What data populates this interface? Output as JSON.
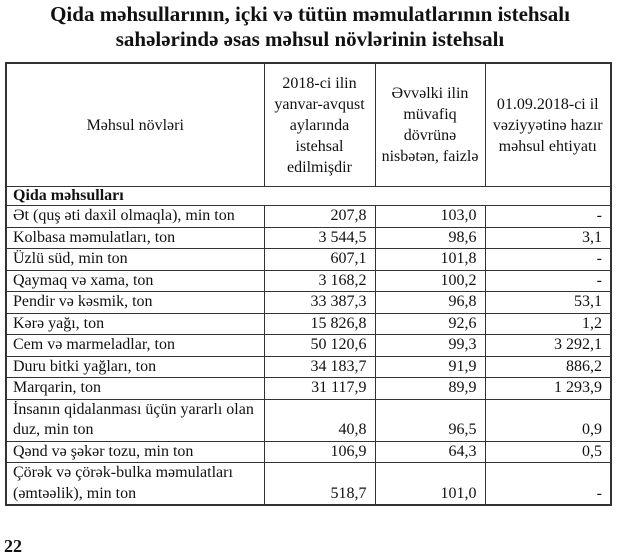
{
  "title": {
    "line1": "Qida məhsullarının, içki və tütün məmulatlarının istehsalı",
    "line2": "sahələrində əsas məhsul növlərinin istehsalı"
  },
  "table": {
    "headers": [
      "Məhsul növləri",
      "2018-ci ilin yanvar-avqust aylarında istehsal edilmişdir",
      "Əvvəlki ilin müvafiq dövrünə nisbətən, faizlə",
      "01.09.2018-ci il vəziyyətinə hazır məhsul ehtiyatı"
    ],
    "section": "Qida məhsulları",
    "rows": [
      {
        "name": "Ət (quş əti daxil olmaqla), min ton",
        "produced": "207,8",
        "percent": "103,0",
        "stock": "-"
      },
      {
        "name": "Kolbasa məmulatları, ton",
        "produced": "3 544,5",
        "percent": "98,6",
        "stock": "3,1"
      },
      {
        "name": "Üzlü süd, min ton",
        "produced": "607,1",
        "percent": "101,8",
        "stock": "-"
      },
      {
        "name": "Qaymaq və xama, ton",
        "produced": "3 168,2",
        "percent": "100,2",
        "stock": "-"
      },
      {
        "name": "Pendir və kəsmik, ton",
        "produced": "33 387,3",
        "percent": "96,8",
        "stock": "53,1"
      },
      {
        "name": "Kərə yağı, ton",
        "produced": "15 826,8",
        "percent": "92,6",
        "stock": "1,2"
      },
      {
        "name": "Cem və marmeladlar, ton",
        "produced": "50 120,6",
        "percent": "99,3",
        "stock": "3 292,1"
      },
      {
        "name": "Duru bitki yağları, ton",
        "produced": "34 183,7",
        "percent": "91,9",
        "stock": "886,2"
      },
      {
        "name": "Marqarin, ton",
        "produced": "31 117,9",
        "percent": "89,9",
        "stock": "1 293,9"
      },
      {
        "name": "İnsanın qidalanması üçün yararlı olan duz, min ton",
        "produced": "40,8",
        "percent": "96,5",
        "stock": "0,9"
      },
      {
        "name": "Qənd və şəkər tozu, min ton",
        "produced": "106,9",
        "percent": "64,3",
        "stock": "0,5"
      },
      {
        "name": "Çörək və çörək-bulka məmulatları (əmtəəlik), min ton",
        "produced": "518,7",
        "percent": "101,0",
        "stock": "-"
      }
    ]
  },
  "page_number": "22"
}
